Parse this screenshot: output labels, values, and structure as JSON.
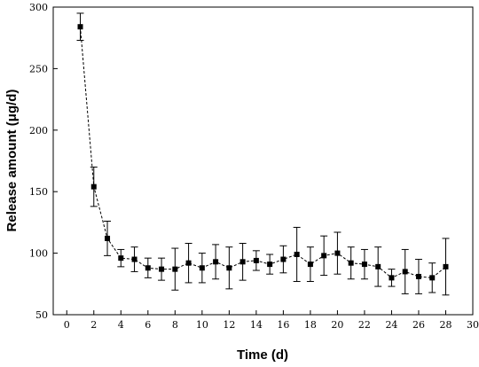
{
  "chart_data": {
    "type": "line",
    "title": "",
    "xlabel": "Time (d)",
    "ylabel": "Release amount (μg/d)",
    "xlim": [
      -1,
      30
    ],
    "ylim": [
      50,
      300
    ],
    "xticks": [
      0,
      2,
      4,
      6,
      8,
      10,
      12,
      14,
      16,
      18,
      20,
      22,
      24,
      26,
      28,
      30
    ],
    "yticks": [
      50,
      100,
      150,
      200,
      250,
      300
    ],
    "line_style": "dashed",
    "marker": "square",
    "grid": false,
    "legend": "none",
    "series": [
      {
        "x": [
          1,
          2,
          3,
          4,
          5,
          6,
          7,
          8,
          9,
          10,
          11,
          12,
          13,
          14,
          15,
          16,
          17,
          18,
          19,
          20,
          21,
          22,
          23,
          24,
          25,
          26,
          27,
          28
        ],
        "y": [
          284,
          154,
          112,
          96,
          95,
          88,
          87,
          87,
          92,
          88,
          93,
          88,
          93,
          94,
          91,
          95,
          99,
          91,
          98,
          100,
          92,
          91,
          89,
          80,
          85,
          81,
          80,
          89
        ],
        "err": [
          11,
          16,
          14,
          7,
          10,
          8,
          9,
          17,
          16,
          12,
          14,
          17,
          15,
          8,
          8,
          11,
          22,
          14,
          16,
          17,
          13,
          12,
          16,
          7,
          18,
          14,
          12,
          23
        ]
      }
    ]
  }
}
